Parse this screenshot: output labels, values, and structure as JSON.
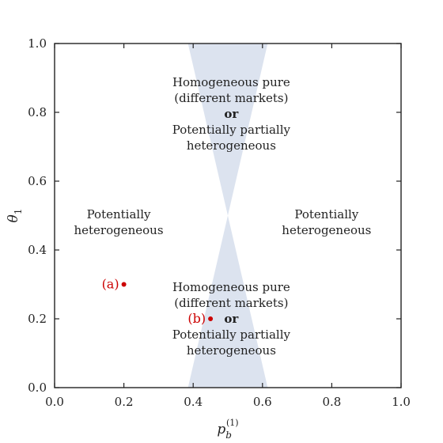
{
  "chart_data": {
    "type": "scatter",
    "xlabel": "p",
    "xlabel_sub": "b",
    "xlabel_sup": "(1)",
    "ylabel": "θ",
    "ylabel_sub": "1",
    "xlim": [
      0.0,
      1.0
    ],
    "ylim": [
      0.0,
      1.0
    ],
    "x_ticks": [
      "0.0",
      "0.2",
      "0.4",
      "0.6",
      "0.8",
      "1.0"
    ],
    "y_ticks": [
      "0.0",
      "0.2",
      "0.4",
      "0.6",
      "0.8",
      "1.0"
    ],
    "grid": false,
    "region_color": "#dce3ef",
    "point_color": "#cc0000",
    "shaded_regions": [
      {
        "name": "upper",
        "polygon": [
          [
            0.385,
            1.0
          ],
          [
            0.615,
            1.0
          ],
          [
            0.5,
            0.5
          ]
        ]
      },
      {
        "name": "lower",
        "polygon": [
          [
            0.385,
            0.0
          ],
          [
            0.615,
            0.0
          ],
          [
            0.5,
            0.5
          ]
        ]
      }
    ],
    "points": [
      {
        "label": "(a)",
        "x": 0.2,
        "y": 0.3
      },
      {
        "label": "(b)",
        "x": 0.45,
        "y": 0.2
      }
    ],
    "annotations": {
      "left": [
        "Potentially",
        "heterogeneous"
      ],
      "right": [
        "Potentially",
        "heterogeneous"
      ],
      "top": [
        "Homogeneous pure",
        "(different markets)",
        "or",
        "Potentially partially",
        "heterogeneous"
      ],
      "bottom": [
        "Homogeneous pure",
        "(different markets)",
        "or",
        "Potentially partially",
        "heterogeneous"
      ]
    }
  }
}
